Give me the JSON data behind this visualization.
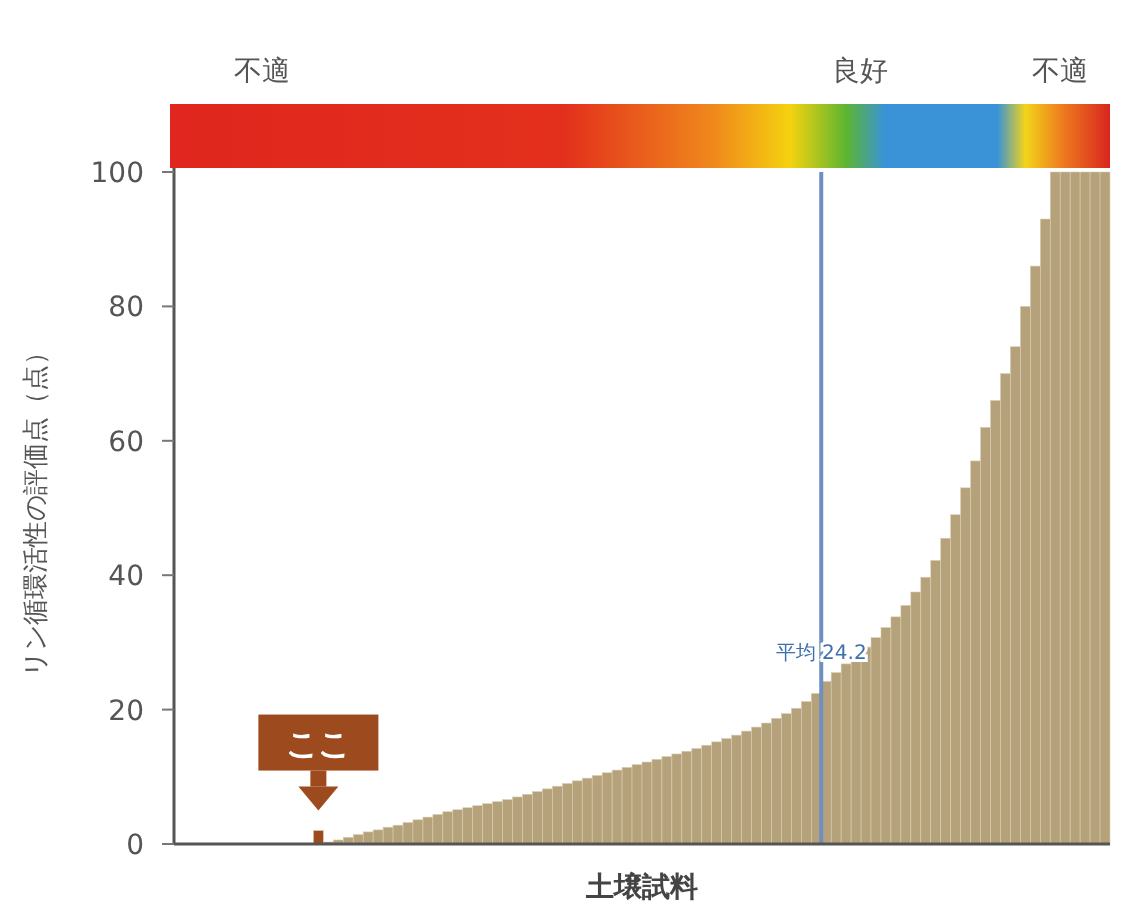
{
  "chart_data": {
    "type": "bar",
    "xlabel": "土壌試料",
    "ylabel": "リン循環活性の評価点（点）",
    "categories": [
      null,
      null,
      null,
      null,
      null,
      null,
      null,
      null,
      null,
      null,
      null,
      null,
      null,
      null,
      null,
      null,
      null,
      null,
      null,
      null,
      null,
      null,
      null,
      null,
      null,
      null,
      null,
      null,
      null,
      null,
      null,
      null,
      null,
      null,
      null,
      null,
      null,
      null,
      null,
      null,
      null,
      null,
      null,
      null,
      null,
      null,
      null,
      null,
      null,
      null,
      null,
      null,
      null,
      null,
      null,
      null,
      null,
      null,
      null,
      null,
      null,
      null,
      null,
      null,
      null,
      null,
      null,
      null,
      null,
      null,
      null,
      null,
      null,
      null,
      null,
      null,
      null,
      null,
      null,
      null,
      null,
      null,
      null,
      null,
      null,
      null,
      null,
      null,
      null,
      null,
      null,
      null,
      null,
      null
    ],
    "values": [
      0,
      0,
      0,
      0,
      0,
      0,
      0,
      0,
      0,
      0,
      0,
      0,
      0,
      0,
      2,
      0.3,
      0.6,
      1.0,
      1.4,
      1.8,
      2.1,
      2.5,
      2.8,
      3.2,
      3.6,
      4.0,
      4.4,
      4.8,
      5.1,
      5.4,
      5.7,
      6.0,
      6.3,
      6.6,
      7.0,
      7.4,
      7.8,
      8.2,
      8.6,
      9.0,
      9.4,
      9.8,
      10.2,
      10.6,
      11.0,
      11.4,
      11.8,
      12.2,
      12.6,
      13.0,
      13.4,
      13.8,
      14.2,
      14.7,
      15.2,
      15.7,
      16.2,
      16.8,
      17.4,
      18.0,
      18.7,
      19.4,
      20.2,
      21.2,
      22.4,
      24.2,
      25.5,
      26.8,
      28.0,
      29.3,
      30.7,
      32.2,
      33.8,
      35.5,
      37.5,
      39.7,
      42.2,
      45.5,
      49,
      53,
      57,
      62,
      66,
      70,
      74,
      80,
      86,
      93,
      100,
      100,
      100,
      100,
      100,
      100
    ],
    "colors": [
      "#b5a27a",
      "#b5a27a",
      "#b5a27a",
      "#b5a27a",
      "#b5a27a",
      "#b5a27a",
      "#b5a27a",
      "#b5a27a",
      "#b5a27a",
      "#b5a27a",
      "#b5a27a",
      "#b5a27a",
      "#b5a27a",
      "#b5a27a",
      "#9c4a1e",
      "#b5a27a",
      "#b5a27a",
      "#b5a27a",
      "#b5a27a",
      "#b5a27a",
      "#b5a27a",
      "#b5a27a",
      "#b5a27a",
      "#b5a27a",
      "#b5a27a",
      "#b5a27a",
      "#b5a27a",
      "#b5a27a",
      "#b5a27a",
      "#b5a27a",
      "#b5a27a",
      "#b5a27a",
      "#b5a27a",
      "#b5a27a",
      "#b5a27a",
      "#b5a27a",
      "#b5a27a",
      "#b5a27a",
      "#b5a27a",
      "#b5a27a",
      "#b5a27a",
      "#b5a27a",
      "#b5a27a",
      "#b5a27a",
      "#b5a27a",
      "#b5a27a",
      "#b5a27a",
      "#b5a27a",
      "#b5a27a",
      "#b5a27a",
      "#b5a27a",
      "#b5a27a",
      "#b5a27a",
      "#b5a27a",
      "#b5a27a",
      "#b5a27a",
      "#b5a27a",
      "#b5a27a",
      "#b5a27a",
      "#b5a27a",
      "#b5a27a",
      "#b5a27a",
      "#b5a27a",
      "#b5a27a",
      "#b5a27a",
      "#b5a27a",
      "#b5a27a",
      "#b5a27a",
      "#b5a27a",
      "#b5a27a",
      "#b5a27a",
      "#b5a27a",
      "#b5a27a",
      "#b5a27a",
      "#b5a27a",
      "#b5a27a",
      "#b5a27a",
      "#b5a27a",
      "#b5a27a",
      "#b5a27a",
      "#b5a27a",
      "#b5a27a",
      "#b5a27a",
      "#b5a27a",
      "#b5a27a",
      "#b5a27a",
      "#b5a27a",
      "#b5a27a",
      "#b5a27a",
      "#b5a27a",
      "#b5a27a",
      "#b5a27a",
      "#b5a27a",
      "#b5a27a"
    ],
    "ylim": [
      0,
      100
    ],
    "yticks": [
      0,
      20,
      40,
      60,
      80,
      100
    ],
    "annotations": [
      "不適",
      "良好",
      "不適",
      "ここ",
      {
        "text": "平均 24.2",
        "y": 24.2
      }
    ]
  }
}
